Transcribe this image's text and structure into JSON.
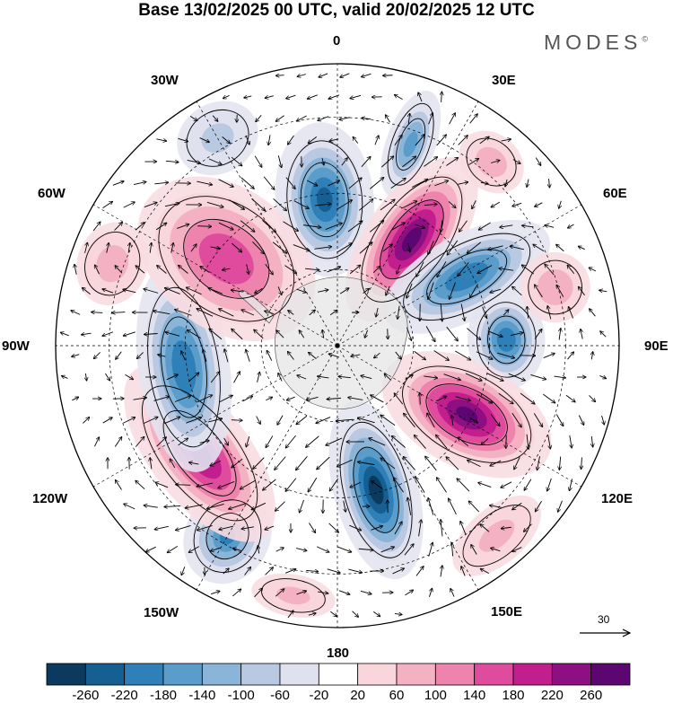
{
  "title": "Base 13/02/2025 00 UTC, valid 20/02/2025 12 UTC",
  "brand": "MODES",
  "brand_mark": "©",
  "longitude_labels": {
    "0": "0",
    "30E": "30E",
    "60E": "60E",
    "90E": "90E",
    "120E": "120E",
    "150E": "150E",
    "180": "180",
    "150W": "150W",
    "120W": "120W",
    "90W": "90W",
    "60W": "60W",
    "30W": "30W"
  },
  "vector_scale": {
    "label": "30"
  },
  "colorbar": {
    "ticks": [
      "-260",
      "-220",
      "-180",
      "-140",
      "-100",
      "-60",
      "-20",
      "20",
      "60",
      "100",
      "140",
      "180",
      "220",
      "260"
    ],
    "colors": [
      "#0b3a5e",
      "#155f92",
      "#2f7fb9",
      "#5a9cca",
      "#8ab4d8",
      "#b9c9e2",
      "#e0e1ef",
      "#ffffff",
      "#f8d6dc",
      "#f4b1c3",
      "#ee83ad",
      "#e04c9d",
      "#c31e8d",
      "#8e0f81",
      "#5c0672"
    ]
  },
  "anomaly_centers": [
    {
      "lon": 20,
      "lat_dist": 0.76,
      "value": -150,
      "rx": 0.07,
      "ry": 0.16
    },
    {
      "lon": 355,
      "lat_dist": 0.52,
      "value": -230,
      "rx": 0.14,
      "ry": 0.22
    },
    {
      "lon": 35,
      "lat_dist": 0.46,
      "value": 275,
      "rx": 0.13,
      "ry": 0.27
    },
    {
      "lon": 62,
      "lat_dist": 0.52,
      "value": -215,
      "rx": 0.12,
      "ry": 0.26
    },
    {
      "lon": 88,
      "lat_dist": 0.6,
      "value": -210,
      "rx": 0.14,
      "ry": 0.11
    },
    {
      "lon": 118,
      "lat_dist": 0.52,
      "value": 265,
      "rx": 0.15,
      "ry": 0.26
    },
    {
      "lon": 165,
      "lat_dist": 0.53,
      "value": -280,
      "rx": 0.12,
      "ry": 0.26
    },
    {
      "lon": 210,
      "lat_dist": 0.78,
      "value": -185,
      "rx": 0.12,
      "ry": 0.14
    },
    {
      "lon": 232,
      "lat_dist": 0.62,
      "value": 230,
      "rx": 0.3,
      "ry": 0.14
    },
    {
      "lon": 262,
      "lat_dist": 0.55,
      "value": -215,
      "rx": 0.3,
      "ry": 0.13
    },
    {
      "lon": 308,
      "lat_dist": 0.5,
      "value": 175,
      "rx": 0.2,
      "ry": 0.28
    },
    {
      "lon": 75,
      "lat_dist": 0.8,
      "value": 90,
      "rx": 0.1,
      "ry": 0.1
    },
    {
      "lon": 40,
      "lat_dist": 0.85,
      "value": 80,
      "rx": 0.1,
      "ry": 0.08
    },
    {
      "lon": 140,
      "lat_dist": 0.88,
      "value": 60,
      "rx": 0.15,
      "ry": 0.08
    },
    {
      "lon": 290,
      "lat_dist": 0.85,
      "value": 70,
      "rx": 0.12,
      "ry": 0.1
    },
    {
      "lon": 190,
      "lat_dist": 0.9,
      "value": 60,
      "rx": 0.12,
      "ry": 0.06
    },
    {
      "lon": 330,
      "lat_dist": 0.85,
      "value": -60,
      "rx": 0.12,
      "ry": 0.1
    }
  ]
}
